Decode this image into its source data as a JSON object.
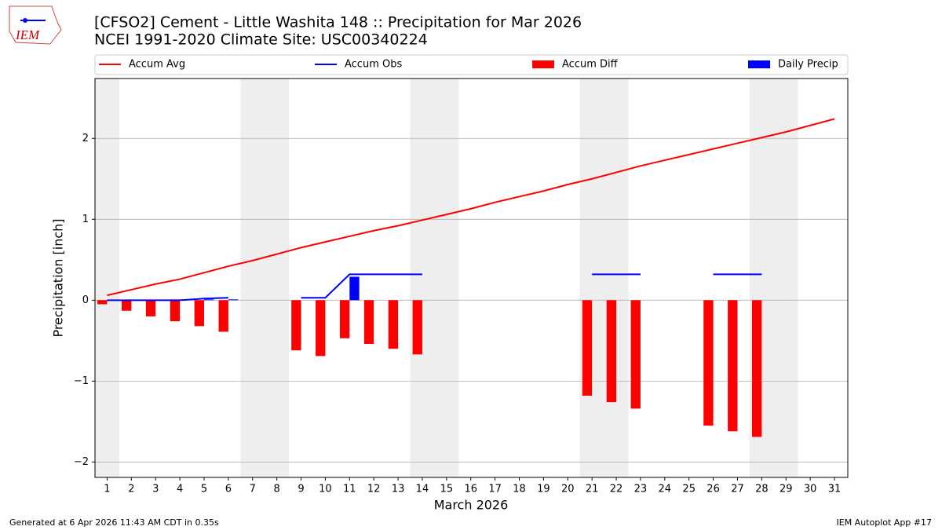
{
  "chart_data": {
    "type": "combo",
    "title": "[CFSO2] Cement - Little Washita 148 :: Precipitation for Mar 2026",
    "subtitle": "NCEI 1991-2020 Climate Site: USC00340224",
    "xlabel": "March 2026",
    "ylabel": "Precipitation [inch]",
    "footer_left": "Generated at 6 Apr 2026 11:43 AM CDT in 0.35s",
    "footer_right": "IEM Autoplot App #17",
    "logo_text": "IEM",
    "x": [
      1,
      2,
      3,
      4,
      5,
      6,
      7,
      8,
      9,
      10,
      11,
      12,
      13,
      14,
      15,
      16,
      17,
      18,
      19,
      20,
      21,
      22,
      23,
      24,
      25,
      26,
      27,
      28,
      29,
      30,
      31
    ],
    "shaded_days": [
      1,
      7,
      8,
      14,
      15,
      21,
      22,
      28,
      29
    ],
    "series": [
      {
        "name": "Accum Avg",
        "style": "line",
        "color": "#ff0000",
        "values": [
          0.06,
          0.13,
          0.2,
          0.26,
          0.34,
          0.42,
          0.49,
          0.57,
          0.65,
          0.72,
          0.79,
          0.86,
          0.92,
          0.99,
          1.06,
          1.13,
          1.21,
          1.28,
          1.35,
          1.43,
          1.5,
          1.58,
          1.66,
          1.73,
          1.8,
          1.87,
          1.94,
          2.01,
          2.08,
          2.16,
          2.24
        ]
      },
      {
        "name": "Accum Obs",
        "style": "line",
        "color": "#0000ff",
        "values": [
          0,
          0,
          0,
          0,
          0.02,
          0.03,
          null,
          null,
          0.03,
          0.03,
          0.32,
          0.32,
          0.32,
          0.32,
          null,
          null,
          null,
          null,
          null,
          null,
          0.32,
          0.32,
          0.32,
          null,
          null,
          0.32,
          0.32,
          0.32,
          null,
          null,
          null
        ]
      },
      {
        "name": "Accum Diff",
        "style": "bar",
        "color": "#ff0000",
        "values": [
          -0.05,
          -0.13,
          -0.2,
          -0.26,
          -0.32,
          -0.39,
          null,
          null,
          -0.62,
          -0.69,
          -0.47,
          -0.54,
          -0.6,
          -0.67,
          null,
          null,
          null,
          null,
          null,
          null,
          -1.18,
          -1.26,
          -1.34,
          null,
          null,
          -1.55,
          -1.62,
          -1.69,
          null,
          null,
          null
        ]
      },
      {
        "name": "Daily Precip",
        "style": "bar",
        "color": "#0000ff",
        "values": [
          0,
          0,
          0,
          0,
          0.01,
          0.01,
          null,
          null,
          0,
          0,
          0.29,
          0,
          0,
          0,
          null,
          null,
          null,
          null,
          null,
          null,
          0,
          0,
          0,
          null,
          null,
          0,
          0,
          0,
          null,
          null,
          null
        ]
      }
    ],
    "xlim": [
      0.5,
      31.55
    ],
    "ylim": [
      -2.19,
      2.74
    ],
    "xticks": [
      1,
      2,
      3,
      4,
      5,
      6,
      7,
      8,
      9,
      10,
      11,
      12,
      13,
      14,
      15,
      16,
      17,
      18,
      19,
      20,
      21,
      22,
      23,
      24,
      25,
      26,
      27,
      28,
      29,
      30,
      31
    ],
    "yticks": [
      {
        "value": -2,
        "label": "−2"
      },
      {
        "value": -1,
        "label": "−1"
      },
      0,
      1,
      2
    ],
    "grid": true,
    "legend": "top"
  }
}
